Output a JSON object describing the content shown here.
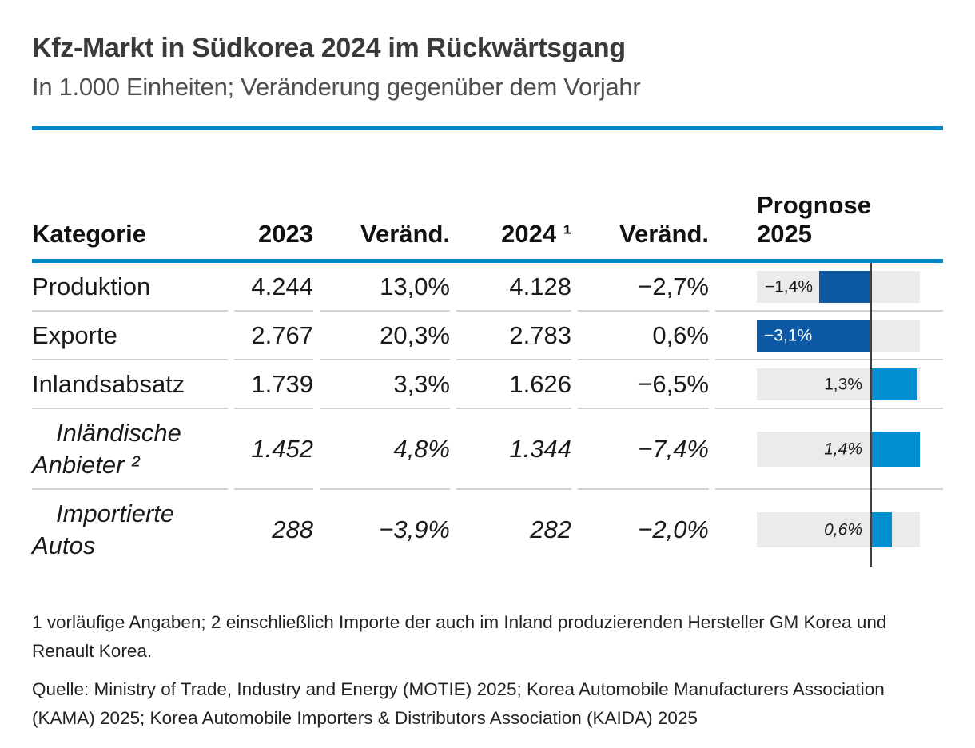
{
  "header": {
    "title": "Kfz-Markt in Südkorea 2024 im Rückwärtsgang",
    "subtitle": "In 1.000 Einheiten; Veränderung gegenüber dem Vorjahr"
  },
  "table": {
    "columns": {
      "category": "Kategorie",
      "y2023": "2023",
      "change1": "Veränd.",
      "y2024": "2024 ¹",
      "change2": "Veränd.",
      "forecast_line1": "Prognose",
      "forecast_line2": "2025"
    },
    "rows": [
      {
        "category": "Produktion",
        "y2023": "4.244",
        "change1": "13,0%",
        "y2024": "4.128",
        "change2": "−2,7%",
        "forecast_label": "−1,4%",
        "forecast_value": -1.4
      },
      {
        "category": "Exporte",
        "y2023": "2.767",
        "change1": "20,3%",
        "y2024": "2.783",
        "change2": "0,6%",
        "forecast_label": "−3,1%",
        "forecast_value": -3.1
      },
      {
        "category": "Inlandsabsatz",
        "y2023": "1.739",
        "change1": "3,3%",
        "y2024": "1.626",
        "change2": "−6,5%",
        "forecast_label": "1,3%",
        "forecast_value": 1.3
      },
      {
        "category": "Inländische\nAnbieter ²",
        "y2023": "1.452",
        "change1": "4,8%",
        "y2024": "1.344",
        "change2": "−7,4%",
        "forecast_label": "1,4%",
        "forecast_value": 1.4
      },
      {
        "category": "Importierte\nAutos",
        "y2023": "288",
        "change1": "−3,9%",
        "y2024": "282",
        "change2": "−2,0%",
        "forecast_label": "0,6%",
        "forecast_value": 0.6
      }
    ]
  },
  "chart_data": {
    "type": "bar",
    "title": "Kfz-Markt in Südkorea 2024 im Rückwärtsgang",
    "subtitle": "In 1.000 Einheiten; Veränderung gegenüber dem Vorjahr",
    "categories": [
      "Produktion",
      "Exporte",
      "Inlandsabsatz",
      "Inländische Anbieter",
      "Importierte Autos"
    ],
    "series": [
      {
        "name": "2023 (1.000 Einheiten)",
        "values": [
          4244,
          2767,
          1739,
          1452,
          288
        ]
      },
      {
        "name": "Veränderung 2023 ggü. Vorjahr (%)",
        "values": [
          13.0,
          20.3,
          3.3,
          4.8,
          -3.9
        ]
      },
      {
        "name": "2024 vorläufig (1.000 Einheiten)",
        "values": [
          4128,
          2783,
          1626,
          1344,
          282
        ]
      },
      {
        "name": "Veränderung 2024 ggü. Vorjahr (%)",
        "values": [
          -2.7,
          0.6,
          -6.5,
          -7.4,
          -2.0
        ]
      },
      {
        "name": "Prognose 2025 Veränderung (%)",
        "values": [
          -1.4,
          -3.1,
          1.3,
          1.4,
          0.6
        ]
      }
    ],
    "bar_series_shown_as_chart": "Prognose 2025 Veränderung (%)",
    "bar_orientation": "horizontal",
    "xlim": [
      -3.1,
      1.4
    ],
    "zero_axis": true,
    "grid": false,
    "legend_position": "none"
  },
  "footnotes": {
    "note": "1 vorläufige Angaben; 2 einschließlich Importe der auch im Inland produzierenden Hersteller GM Korea und Renault Korea.",
    "source": "Quelle: Ministry of Trade, Industry and Energy (MOTIE) 2025; Korea Automobile Manufacturers Association (KAMA) 2025; Korea Automobile Importers & Distributors Association (KAIDA) 2025"
  },
  "colors": {
    "accent": "#0087cb",
    "bar_neg": "#0e59a4",
    "bar_pos": "#0090d2",
    "strip": "#ebebeb",
    "axis": "#3f3f3f",
    "sep": "#d2d2d2"
  }
}
